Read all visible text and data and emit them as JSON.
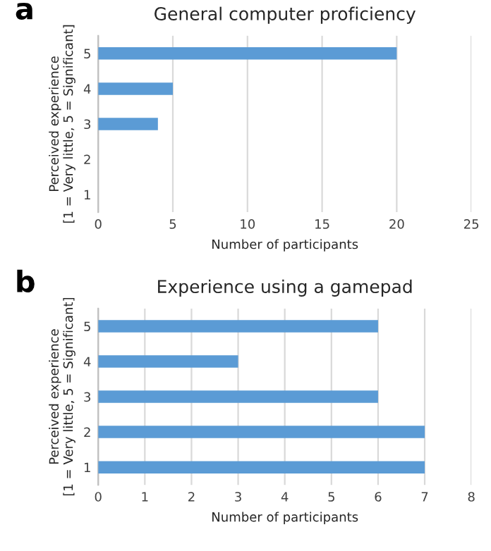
{
  "chart_data": [
    {
      "type": "bar",
      "orientation": "horizontal",
      "title": "General computer proficiency",
      "annotations": [
        "a"
      ],
      "xlabel": "Number of participants",
      "ylabel": "Perceived experience\n[1 = Very little, 5 = Significant]",
      "categories": [
        "5",
        "4",
        "3",
        "2",
        "1"
      ],
      "values": [
        20,
        5,
        4,
        0,
        0
      ],
      "color": "#5b9bd5",
      "xlim": [
        0,
        25
      ],
      "xticks": [
        0,
        5,
        10,
        15,
        20,
        25
      ],
      "grid": "x",
      "legend": false
    },
    {
      "type": "bar",
      "orientation": "horizontal",
      "title": "Experience using a gamepad",
      "annotations": [
        "b"
      ],
      "xlabel": "Number of participants",
      "ylabel": "Perceived experience\n[1 = Very little, 5 = Significant]",
      "categories": [
        "5",
        "4",
        "3",
        "2",
        "1"
      ],
      "values": [
        6,
        3,
        6,
        7,
        7
      ],
      "color": "#5b9bd5",
      "xlim": [
        0,
        8
      ],
      "xticks": [
        0,
        1,
        2,
        3,
        4,
        5,
        6,
        7,
        8
      ],
      "grid": "x",
      "legend": false
    }
  ]
}
